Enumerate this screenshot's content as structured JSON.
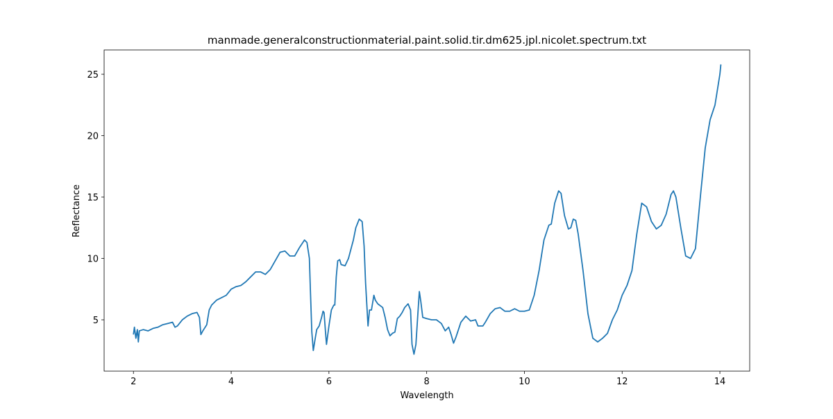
{
  "chart_data": {
    "type": "line",
    "title": "manmade.generalconstructionmaterial.paint.solid.tir.dm625.jpl.nicolet.spectrum.txt",
    "xlabel": "Wavelength",
    "ylabel": "Reflectance",
    "xlim": [
      1.4,
      14.61
    ],
    "ylim": [
      0.82,
      26.98
    ],
    "xticks": [
      2,
      4,
      6,
      8,
      10,
      12,
      14
    ],
    "yticks": [
      5,
      10,
      15,
      20,
      25
    ],
    "series": [
      {
        "color": "#1f77b4",
        "x": [
          2.0,
          2.02,
          2.05,
          2.08,
          2.1,
          2.12,
          2.2,
          2.3,
          2.4,
          2.5,
          2.6,
          2.7,
          2.8,
          2.85,
          2.9,
          3.0,
          3.1,
          3.2,
          3.3,
          3.35,
          3.38,
          3.42,
          3.5,
          3.55,
          3.6,
          3.7,
          3.8,
          3.9,
          4.0,
          4.1,
          4.2,
          4.3,
          4.4,
          4.5,
          4.6,
          4.7,
          4.8,
          4.9,
          5.0,
          5.1,
          5.2,
          5.3,
          5.4,
          5.5,
          5.55,
          5.6,
          5.62,
          5.65,
          5.68,
          5.72,
          5.75,
          5.8,
          5.85,
          5.88,
          5.9,
          5.93,
          5.95,
          6.0,
          6.05,
          6.1,
          6.12,
          6.15,
          6.18,
          6.22,
          6.25,
          6.33,
          6.4,
          6.5,
          6.55,
          6.62,
          6.68,
          6.72,
          6.75,
          6.8,
          6.83,
          6.87,
          6.92,
          6.95,
          7.0,
          7.1,
          7.15,
          7.2,
          7.25,
          7.3,
          7.35,
          7.4,
          7.45,
          7.5,
          7.55,
          7.62,
          7.67,
          7.7,
          7.74,
          7.78,
          7.82,
          7.85,
          7.88,
          7.92,
          8.0,
          8.1,
          8.2,
          8.3,
          8.38,
          8.45,
          8.5,
          8.55,
          8.6,
          8.7,
          8.8,
          8.9,
          9.0,
          9.05,
          9.15,
          9.2,
          9.3,
          9.4,
          9.5,
          9.6,
          9.7,
          9.8,
          9.9,
          10.0,
          10.1,
          10.2,
          10.3,
          10.4,
          10.5,
          10.55,
          10.62,
          10.7,
          10.75,
          10.82,
          10.9,
          10.95,
          11.0,
          11.05,
          11.1,
          11.2,
          11.3,
          11.4,
          11.5,
          11.6,
          11.7,
          11.8,
          11.9,
          12.0,
          12.1,
          12.2,
          12.3,
          12.4,
          12.5,
          12.6,
          12.7,
          12.8,
          12.9,
          13.0,
          13.05,
          13.1,
          13.2,
          13.3,
          13.4,
          13.5,
          13.6,
          13.7,
          13.8,
          13.9,
          14.0,
          14.02
        ],
        "values": [
          3.8,
          4.4,
          3.5,
          4.2,
          3.2,
          4.1,
          4.2,
          4.1,
          4.3,
          4.4,
          4.6,
          4.7,
          4.8,
          4.4,
          4.5,
          5.0,
          5.3,
          5.5,
          5.6,
          5.2,
          3.8,
          4.1,
          4.6,
          5.8,
          6.2,
          6.6,
          6.8,
          7.0,
          7.5,
          7.7,
          7.8,
          8.1,
          8.5,
          8.9,
          8.9,
          8.7,
          9.1,
          9.8,
          10.5,
          10.6,
          10.2,
          10.2,
          10.9,
          11.5,
          11.3,
          10.0,
          7.5,
          4.0,
          2.5,
          3.5,
          4.2,
          4.5,
          5.2,
          5.7,
          5.6,
          4.0,
          3.0,
          4.5,
          5.8,
          6.2,
          6.2,
          8.5,
          9.8,
          9.9,
          9.5,
          9.4,
          10.0,
          11.5,
          12.5,
          13.2,
          13.0,
          11.0,
          8.0,
          4.5,
          5.8,
          5.8,
          7.0,
          6.6,
          6.3,
          6.0,
          5.2,
          4.2,
          3.7,
          3.9,
          4.0,
          5.1,
          5.3,
          5.6,
          6.0,
          6.3,
          5.8,
          3.0,
          2.2,
          3.0,
          5.5,
          7.3,
          6.5,
          5.2,
          5.1,
          5.0,
          5.0,
          4.7,
          4.1,
          4.4,
          3.8,
          3.1,
          3.6,
          4.8,
          5.3,
          4.9,
          5.0,
          4.5,
          4.5,
          4.8,
          5.5,
          5.9,
          6.0,
          5.7,
          5.7,
          5.9,
          5.7,
          5.7,
          5.8,
          7.0,
          9.0,
          11.5,
          12.7,
          12.8,
          14.5,
          15.5,
          15.3,
          13.5,
          12.4,
          12.5,
          13.2,
          13.1,
          12.0,
          9.0,
          5.5,
          3.5,
          3.2,
          3.5,
          3.9,
          5.0,
          5.8,
          7.0,
          7.8,
          9.0,
          12.0,
          14.5,
          14.2,
          13.0,
          12.4,
          12.7,
          13.6,
          15.2,
          15.5,
          15.0,
          12.5,
          10.2,
          10.0,
          10.8,
          15.0,
          19.0,
          21.3,
          22.5,
          25.0,
          25.8
        ]
      }
    ]
  }
}
